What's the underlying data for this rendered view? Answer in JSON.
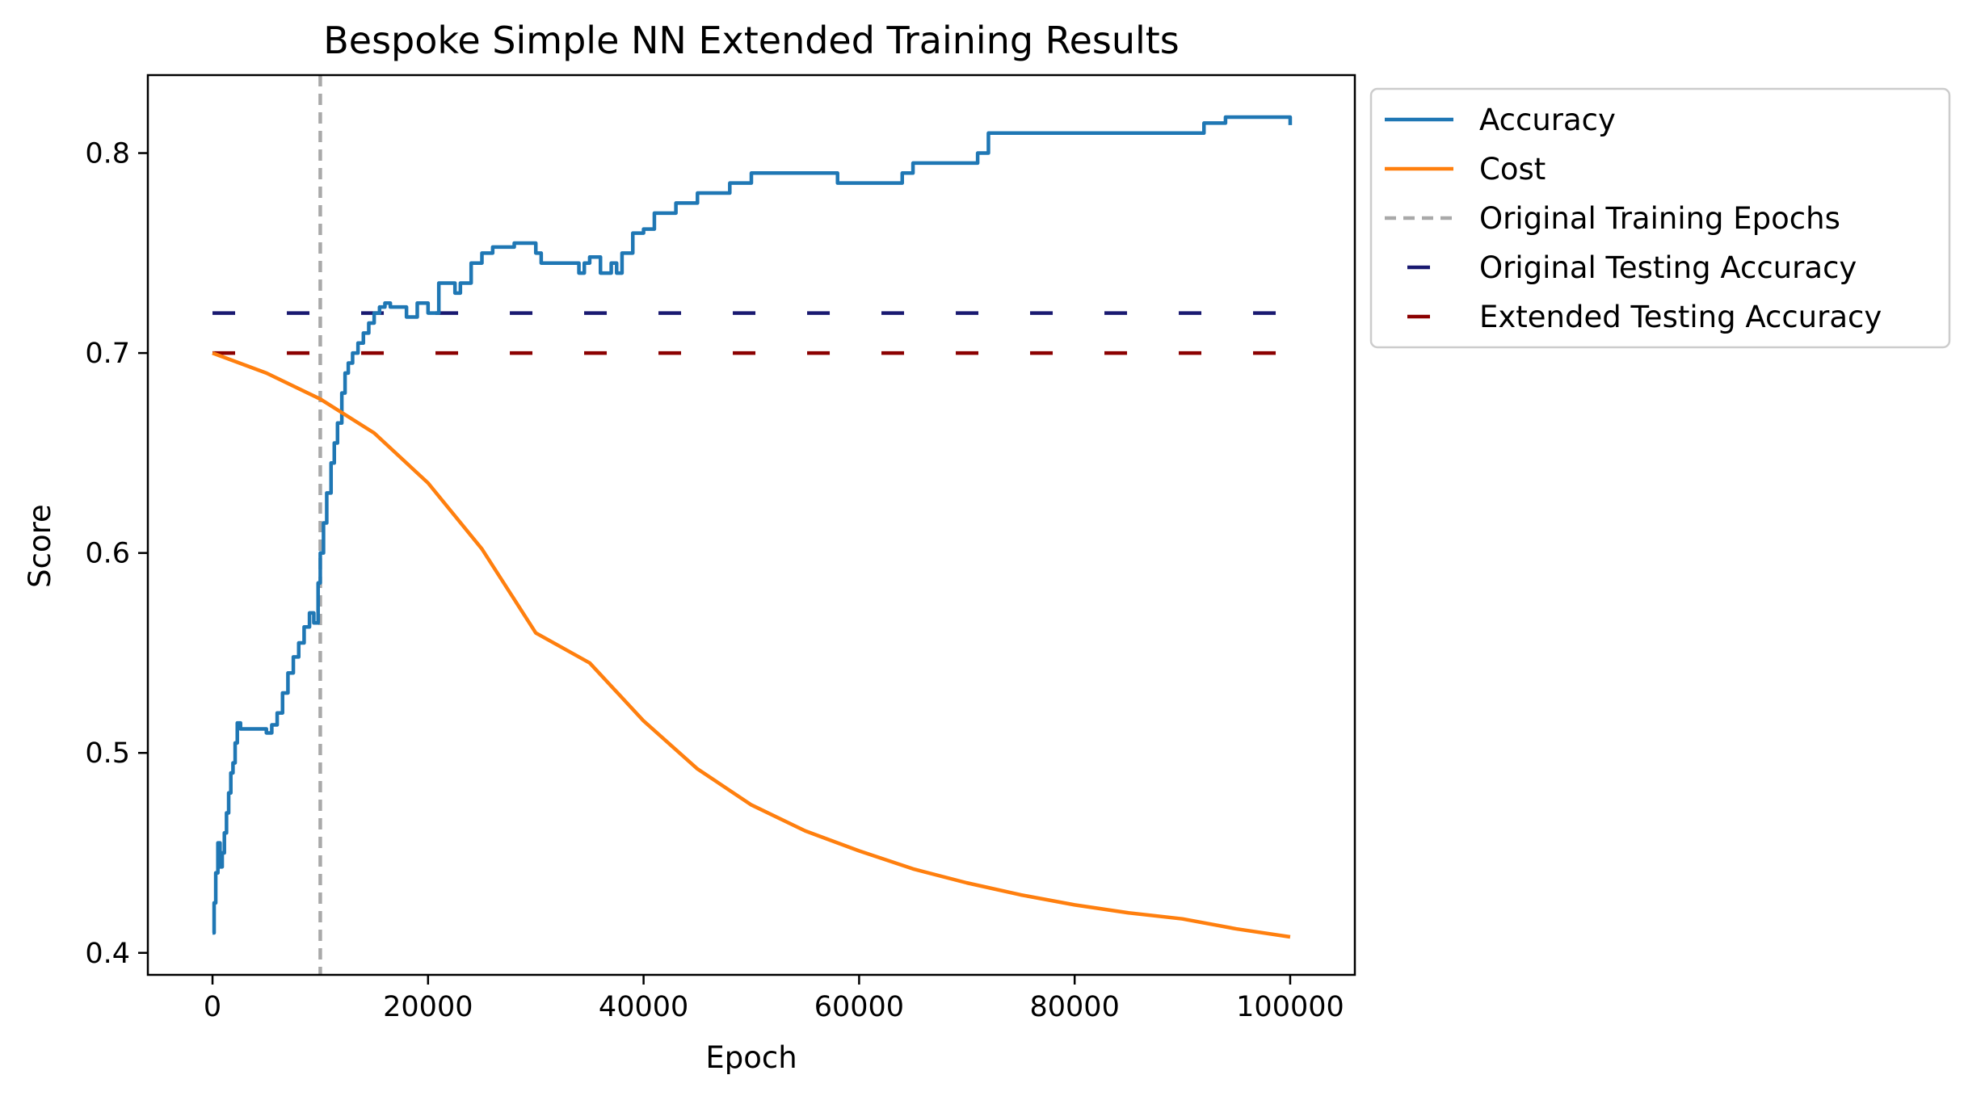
{
  "chart_data": {
    "type": "line",
    "title": "Bespoke Simple NN Extended Training Results",
    "xlabel": "Epoch",
    "ylabel": "Score",
    "xlim": [
      -6000,
      106000
    ],
    "ylim": [
      0.389,
      0.839
    ],
    "x_ticks": [
      0,
      20000,
      40000,
      60000,
      80000,
      100000
    ],
    "x_tick_labels": [
      "0",
      "20000",
      "40000",
      "60000",
      "80000",
      "100000"
    ],
    "y_ticks": [
      0.4,
      0.5,
      0.6,
      0.7,
      0.8
    ],
    "y_tick_labels": [
      "0.4",
      "0.5",
      "0.6",
      "0.7",
      "0.8"
    ],
    "grid": false,
    "legend_position": "outside-upper-right",
    "series": [
      {
        "name": "Accuracy",
        "style": "solid",
        "color": "#1f77b4",
        "step": true,
        "x": [
          0,
          150,
          300,
          500,
          700,
          900,
          1100,
          1300,
          1500,
          1700,
          1900,
          2100,
          2300,
          2600,
          3000,
          4000,
          5000,
          5500,
          6000,
          6500,
          7000,
          7500,
          8000,
          8500,
          9000,
          9400,
          9800,
          10000,
          10300,
          10600,
          11000,
          11300,
          11600,
          12000,
          12300,
          12600,
          13000,
          13500,
          14000,
          14500,
          15000,
          15500,
          16000,
          16500,
          18000,
          19000,
          20000,
          21000,
          22500,
          23000,
          24000,
          25000,
          26000,
          28000,
          30000,
          30500,
          31000,
          33000,
          34000,
          34500,
          35000,
          36000,
          37000,
          37500,
          38000,
          39000,
          40000,
          41000,
          43000,
          45000,
          48000,
          50000,
          55000,
          58000,
          64000,
          65000,
          71000,
          72000,
          92000,
          94000,
          100000
        ],
        "y": [
          0.41,
          0.425,
          0.44,
          0.455,
          0.443,
          0.45,
          0.46,
          0.47,
          0.48,
          0.49,
          0.495,
          0.505,
          0.515,
          0.512,
          0.512,
          0.512,
          0.51,
          0.514,
          0.52,
          0.53,
          0.54,
          0.548,
          0.555,
          0.563,
          0.57,
          0.565,
          0.585,
          0.6,
          0.615,
          0.63,
          0.645,
          0.655,
          0.665,
          0.68,
          0.69,
          0.695,
          0.7,
          0.705,
          0.71,
          0.715,
          0.72,
          0.723,
          0.725,
          0.723,
          0.718,
          0.725,
          0.72,
          0.735,
          0.73,
          0.735,
          0.745,
          0.75,
          0.753,
          0.755,
          0.75,
          0.745,
          0.745,
          0.745,
          0.74,
          0.745,
          0.748,
          0.74,
          0.745,
          0.74,
          0.75,
          0.76,
          0.762,
          0.77,
          0.775,
          0.78,
          0.785,
          0.79,
          0.79,
          0.785,
          0.79,
          0.795,
          0.8,
          0.81,
          0.815,
          0.818,
          0.814
        ]
      },
      {
        "name": "Cost",
        "style": "solid",
        "color": "#ff7f0e",
        "x": [
          0,
          5000,
          10000,
          15000,
          20000,
          25000,
          30000,
          35000,
          40000,
          45000,
          50000,
          55000,
          60000,
          65000,
          70000,
          75000,
          80000,
          85000,
          90000,
          95000,
          100000
        ],
        "y": [
          0.7,
          0.69,
          0.677,
          0.66,
          0.635,
          0.602,
          0.56,
          0.545,
          0.516,
          0.492,
          0.474,
          0.461,
          0.451,
          0.442,
          0.435,
          0.429,
          0.424,
          0.42,
          0.417,
          0.412,
          0.408
        ]
      }
    ],
    "reference_lines": [
      {
        "name": "Original Training Epochs",
        "orientation": "vertical",
        "x": 10000,
        "style": "dashed",
        "color": "#a9a9a9"
      },
      {
        "name": "Original Testing Accuracy",
        "orientation": "horizontal",
        "y": 0.72,
        "x_range": [
          0,
          100000
        ],
        "style": "dashed",
        "color": "#191970"
      },
      {
        "name": "Extended Testing Accuracy",
        "orientation": "horizontal",
        "y": 0.7,
        "x_range": [
          0,
          100000
        ],
        "style": "dashed",
        "color": "#8b0000"
      }
    ],
    "legend": [
      {
        "label": "Accuracy",
        "color": "#1f77b4",
        "style": "solid"
      },
      {
        "label": "Cost",
        "color": "#ff7f0e",
        "style": "solid"
      },
      {
        "label": "Original Training Epochs",
        "color": "#a9a9a9",
        "style": "dashed"
      },
      {
        "label": "Original Testing Accuracy",
        "color": "#191970",
        "style": "dashed"
      },
      {
        "label": "Extended Testing Accuracy",
        "color": "#8b0000",
        "style": "dashed"
      }
    ]
  }
}
